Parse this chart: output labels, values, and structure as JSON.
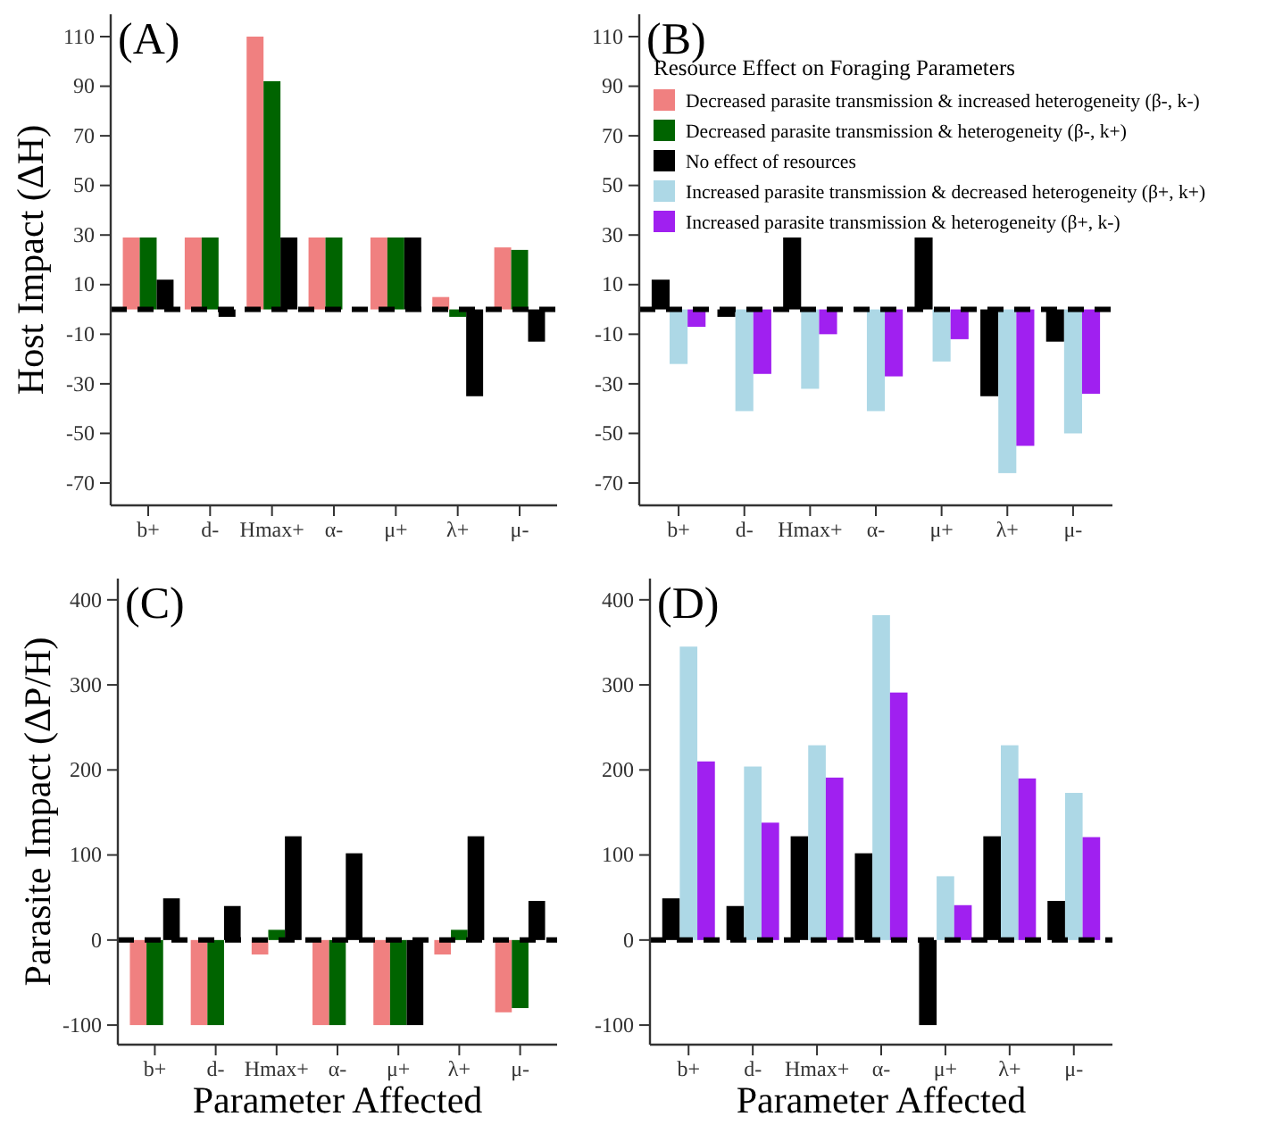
{
  "chart_data": [
    {
      "type": "bar",
      "title": "(A)",
      "ylabel": "Host Impact (ΔH)",
      "categories": [
        "b+",
        "d-",
        "Hmax+",
        "α-",
        "μ+",
        "λ+",
        "μ-"
      ],
      "ylim": [
        -79,
        119
      ],
      "yticks": [
        -70,
        -50,
        -30,
        -10,
        10,
        30,
        50,
        70,
        90,
        110
      ],
      "series": [
        {
          "color": "#f08080",
          "values": [
            29,
            29,
            110,
            29,
            29,
            5,
            25
          ]
        },
        {
          "color": "#006400",
          "values": [
            29,
            29,
            92,
            29,
            29,
            -3,
            24
          ]
        },
        {
          "color": "#000000",
          "values": [
            12,
            -3,
            29,
            0,
            29,
            -35,
            -13
          ]
        }
      ],
      "ref_lines": [
        {
          "axis": "y",
          "value": 0,
          "color": "#000000",
          "line_style": "dashed"
        }
      ]
    },
    {
      "type": "bar",
      "title": "(B)",
      "legend_title": "Resource Effect on Foraging Parameters",
      "legend": "top",
      "categories": [
        "b+",
        "d-",
        "Hmax+",
        "α-",
        "μ+",
        "λ+",
        "μ-"
      ],
      "ylim": [
        -79,
        119
      ],
      "yticks": [
        -70,
        -50,
        -30,
        -10,
        10,
        30,
        50,
        70,
        90,
        110
      ],
      "series": [
        {
          "name": "Decreased parasite transmission & increased heterogeneity (β-, k-)",
          "color": "#f08080",
          "values": [
            null,
            null,
            null,
            null,
            null,
            null,
            null
          ]
        },
        {
          "name": "Decreased parasite transmission & heterogeneity (β-, k+)",
          "color": "#006400",
          "values": [
            null,
            null,
            null,
            null,
            null,
            null,
            null
          ]
        },
        {
          "name": "No effect of resources",
          "color": "#000000",
          "values": [
            12,
            -3,
            29,
            0,
            29,
            -35,
            -13
          ]
        },
        {
          "name": "Increased parasite transmission & decreased heterogeneity (β+, k+)",
          "color": "#add8e6",
          "values": [
            -22,
            -41,
            -32,
            -41,
            -21,
            -66,
            -50
          ]
        },
        {
          "name": "Increased parasite transmission & heterogeneity (β+, k-)",
          "color": "#a020f0",
          "values": [
            -7,
            -26,
            -10,
            -27,
            -12,
            -55,
            -34
          ]
        }
      ],
      "ref_lines": [
        {
          "axis": "y",
          "value": 0,
          "color": "#000000",
          "line_style": "dashed"
        }
      ]
    },
    {
      "type": "bar",
      "title": "(C)",
      "ylabel": "Parasite Impact (ΔP/H)",
      "xlabel": "Parameter Affected",
      "categories": [
        "b+",
        "d-",
        "Hmax+",
        "α-",
        "μ+",
        "λ+",
        "μ-"
      ],
      "ylim": [
        -123,
        425
      ],
      "yticks": [
        -100,
        0,
        100,
        200,
        300,
        400
      ],
      "series": [
        {
          "color": "#f08080",
          "values": [
            -100,
            -100,
            -17,
            -100,
            -100,
            -17,
            -85
          ]
        },
        {
          "color": "#006400",
          "values": [
            -100,
            -100,
            12,
            -100,
            -100,
            12,
            -80
          ]
        },
        {
          "color": "#000000",
          "values": [
            49,
            40,
            122,
            102,
            -100,
            122,
            46
          ]
        }
      ],
      "ref_lines": [
        {
          "axis": "y",
          "value": 0,
          "color": "#000000",
          "line_style": "dashed"
        }
      ]
    },
    {
      "type": "bar",
      "title": "(D)",
      "xlabel": "Parameter Affected",
      "categories": [
        "b+",
        "d-",
        "Hmax+",
        "α-",
        "μ+",
        "λ+",
        "μ-"
      ],
      "ylim": [
        -123,
        425
      ],
      "yticks": [
        -100,
        0,
        100,
        200,
        300,
        400
      ],
      "series": [
        {
          "color": "#000000",
          "values": [
            49,
            40,
            122,
            102,
            -100,
            122,
            46
          ]
        },
        {
          "color": "#add8e6",
          "values": [
            345,
            204,
            229,
            382,
            75,
            229,
            173
          ]
        },
        {
          "color": "#a020f0",
          "values": [
            210,
            138,
            191,
            291,
            41,
            190,
            121
          ]
        }
      ],
      "ref_lines": [
        {
          "axis": "y",
          "value": 0,
          "color": "#000000",
          "line_style": "dashed"
        }
      ]
    }
  ]
}
